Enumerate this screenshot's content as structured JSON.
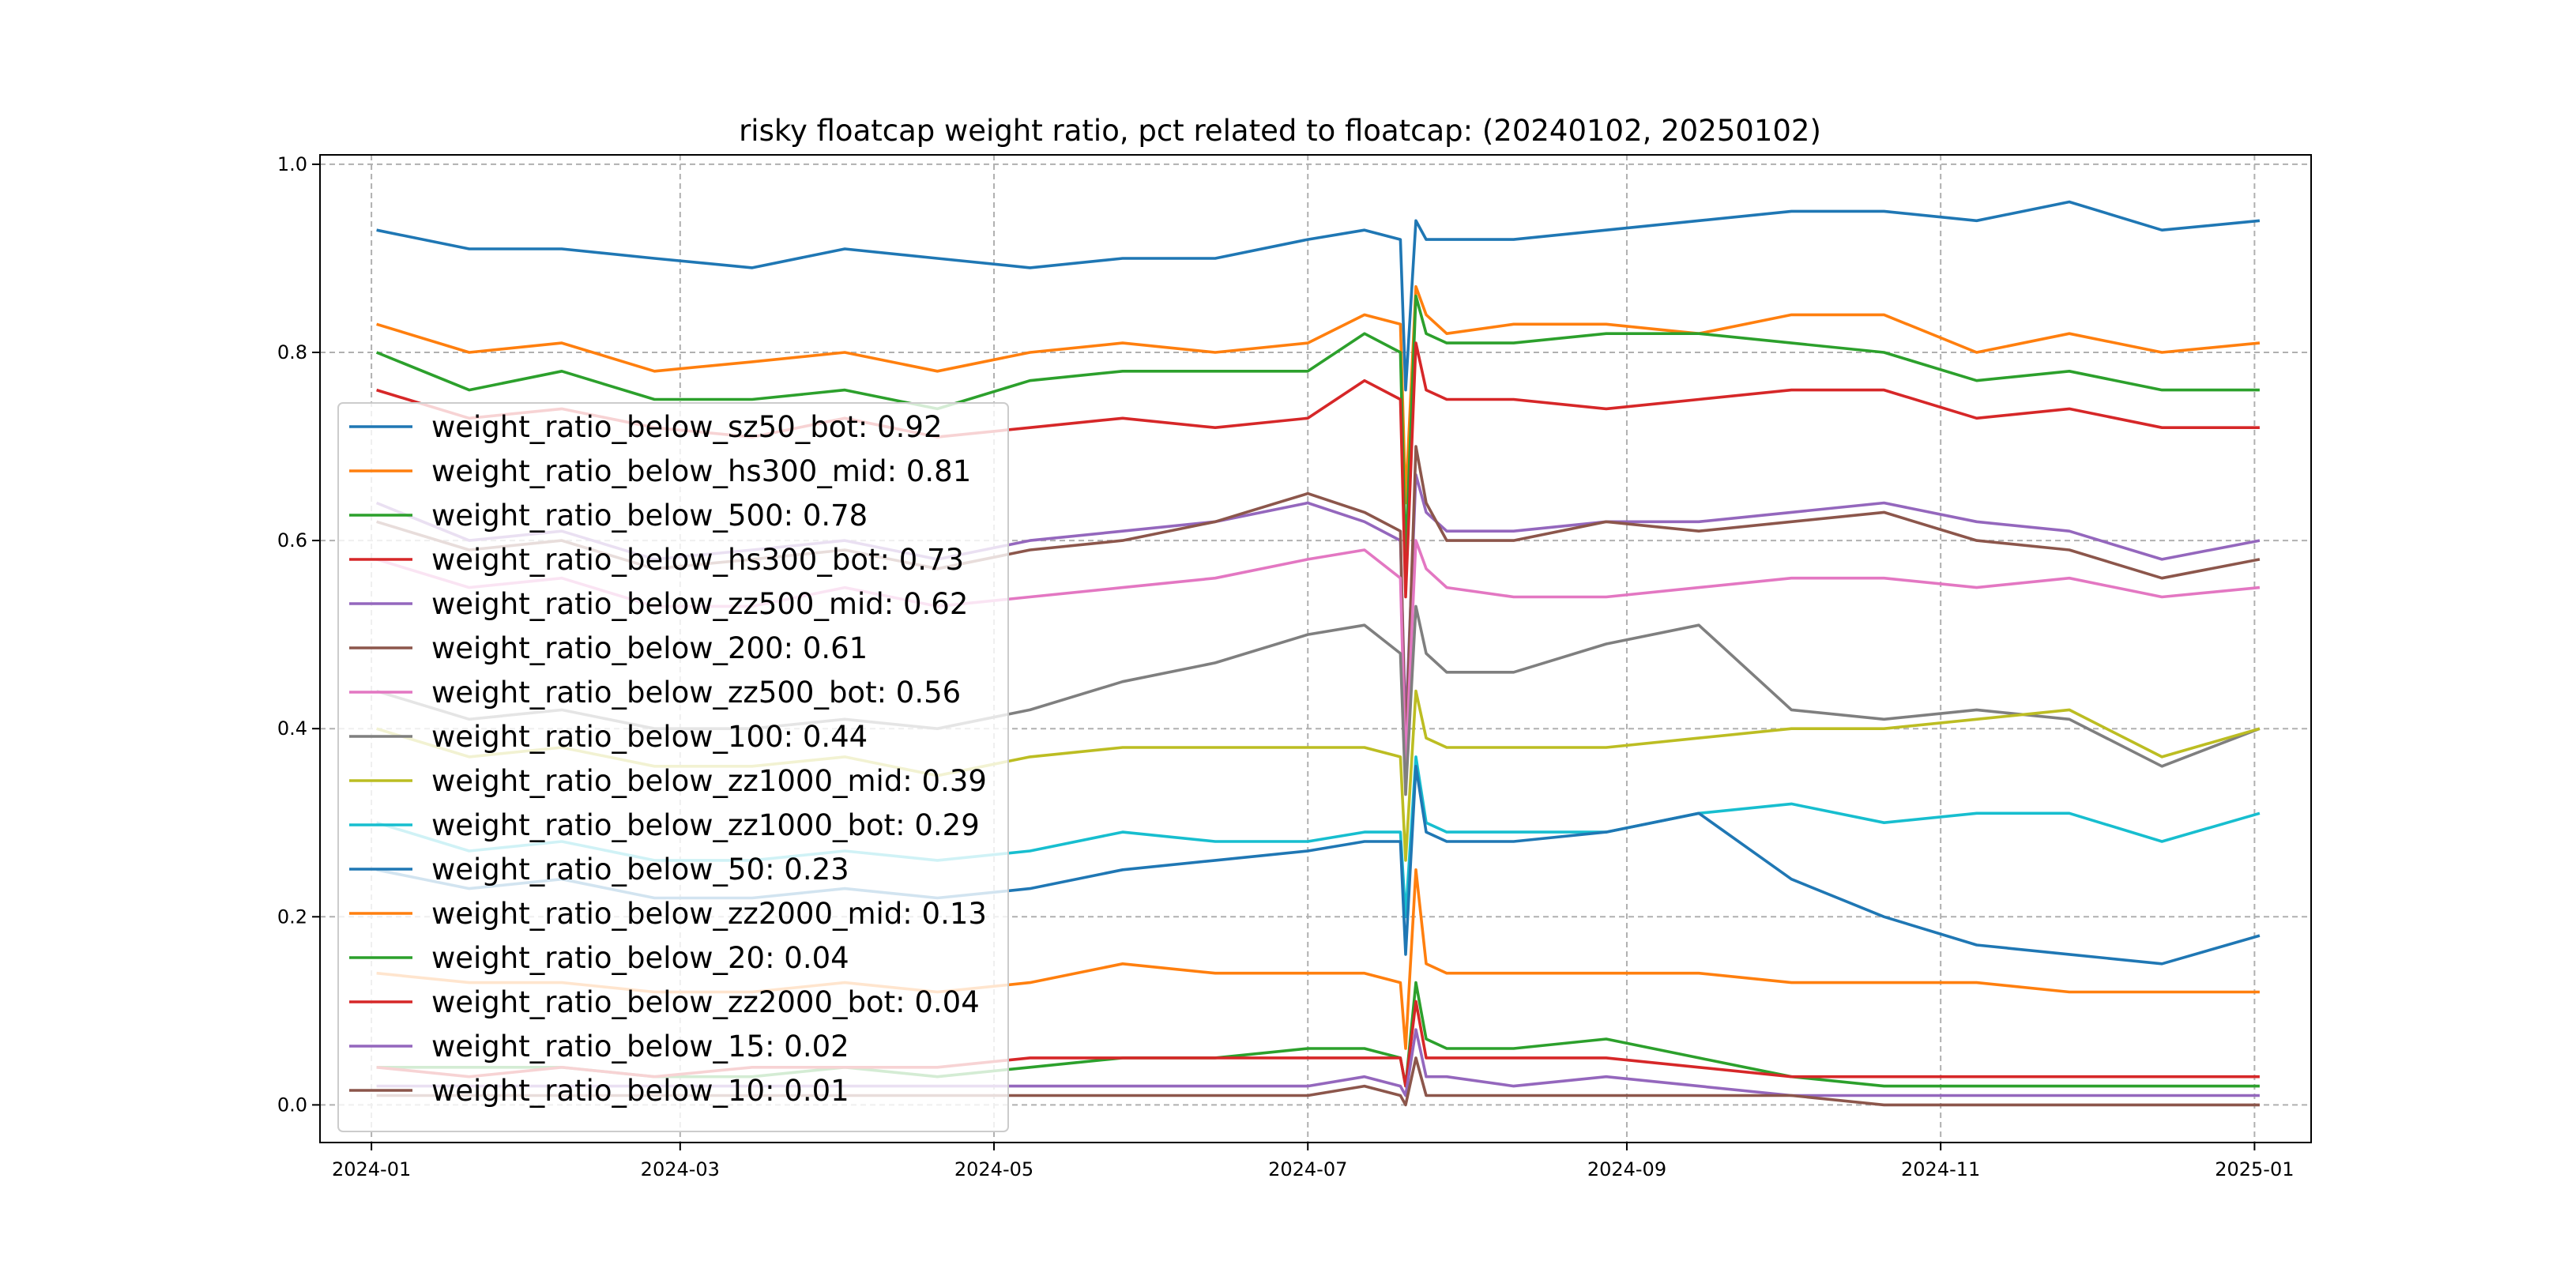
{
  "chart_data": {
    "type": "line",
    "title": "risky floatcap weight ratio, pct related to floatcap: (20240102, 20250102)",
    "xlabel": "",
    "ylabel": "",
    "xlim": [
      "2023-12-22",
      "2025-01-12"
    ],
    "ylim": [
      -0.04,
      1.01
    ],
    "xticks": [
      "2024-01",
      "2024-03",
      "2024-05",
      "2024-07",
      "2024-09",
      "2024-11",
      "2025-01"
    ],
    "xtick_dates": [
      "2024-01-01",
      "2024-03-01",
      "2024-05-01",
      "2024-07-01",
      "2024-09-01",
      "2024-11-01",
      "2025-01-01"
    ],
    "yticks": [
      "0.0",
      "0.2",
      "0.4",
      "0.6",
      "0.8",
      "1.0"
    ],
    "ytick_values": [
      0.0,
      0.2,
      0.4,
      0.6,
      0.8,
      1.0
    ],
    "grid": true,
    "legend_position": "lower-left",
    "x": [
      "2024-01-02",
      "2024-01-20",
      "2024-02-07",
      "2024-02-25",
      "2024-03-15",
      "2024-04-02",
      "2024-04-20",
      "2024-05-08",
      "2024-05-26",
      "2024-06-13",
      "2024-07-01",
      "2024-07-12",
      "2024-07-19",
      "2024-07-20",
      "2024-07-22",
      "2024-07-24",
      "2024-07-28",
      "2024-08-10",
      "2024-08-28",
      "2024-09-15",
      "2024-10-03",
      "2024-10-21",
      "2024-11-08",
      "2024-11-26",
      "2024-12-14",
      "2025-01-02"
    ],
    "series": [
      {
        "name": "weight_ratio_below_sz50_bot: 0.92",
        "color": "#1f77b4",
        "values": [
          0.93,
          0.91,
          0.91,
          0.9,
          0.89,
          0.91,
          0.9,
          0.89,
          0.9,
          0.9,
          0.92,
          0.93,
          0.92,
          0.76,
          0.94,
          0.92,
          0.92,
          0.92,
          0.93,
          0.94,
          0.95,
          0.95,
          0.94,
          0.96,
          0.93,
          0.94
        ]
      },
      {
        "name": "weight_ratio_below_hs300_mid: 0.81",
        "color": "#ff7f0e",
        "values": [
          0.83,
          0.8,
          0.81,
          0.78,
          0.79,
          0.8,
          0.78,
          0.8,
          0.81,
          0.8,
          0.81,
          0.84,
          0.83,
          0.64,
          0.87,
          0.84,
          0.82,
          0.83,
          0.83,
          0.82,
          0.84,
          0.84,
          0.8,
          0.82,
          0.8,
          0.81
        ]
      },
      {
        "name": "weight_ratio_below_500: 0.78",
        "color": "#2ca02c",
        "values": [
          0.8,
          0.76,
          0.78,
          0.75,
          0.75,
          0.76,
          0.74,
          0.77,
          0.78,
          0.78,
          0.78,
          0.82,
          0.8,
          0.58,
          0.86,
          0.82,
          0.81,
          0.81,
          0.82,
          0.82,
          0.81,
          0.8,
          0.77,
          0.78,
          0.76,
          0.76
        ]
      },
      {
        "name": "weight_ratio_below_hs300_bot: 0.73",
        "color": "#d62728",
        "values": [
          0.76,
          0.73,
          0.74,
          0.72,
          0.71,
          0.73,
          0.71,
          0.72,
          0.73,
          0.72,
          0.73,
          0.77,
          0.75,
          0.54,
          0.81,
          0.76,
          0.75,
          0.75,
          0.74,
          0.75,
          0.76,
          0.76,
          0.73,
          0.74,
          0.72,
          0.72
        ]
      },
      {
        "name": "weight_ratio_below_zz500_mid: 0.62",
        "color": "#9467bd",
        "values": [
          0.64,
          0.6,
          0.61,
          0.58,
          0.59,
          0.6,
          0.58,
          0.6,
          0.61,
          0.62,
          0.64,
          0.62,
          0.6,
          0.4,
          0.67,
          0.63,
          0.61,
          0.61,
          0.62,
          0.62,
          0.63,
          0.64,
          0.62,
          0.61,
          0.58,
          0.6
        ]
      },
      {
        "name": "weight_ratio_below_200: 0.61",
        "color": "#8c564b",
        "values": [
          0.62,
          0.59,
          0.6,
          0.57,
          0.58,
          0.59,
          0.57,
          0.59,
          0.6,
          0.62,
          0.65,
          0.63,
          0.61,
          0.37,
          0.7,
          0.64,
          0.6,
          0.6,
          0.62,
          0.61,
          0.62,
          0.63,
          0.6,
          0.59,
          0.56,
          0.58
        ]
      },
      {
        "name": "weight_ratio_below_zz500_bot: 0.56",
        "color": "#e377c2",
        "values": [
          0.58,
          0.55,
          0.56,
          0.53,
          0.53,
          0.55,
          0.53,
          0.54,
          0.55,
          0.56,
          0.58,
          0.59,
          0.56,
          0.36,
          0.6,
          0.57,
          0.55,
          0.54,
          0.54,
          0.55,
          0.56,
          0.56,
          0.55,
          0.56,
          0.54,
          0.55
        ]
      },
      {
        "name": "weight_ratio_below_100: 0.44",
        "color": "#7f7f7f",
        "values": [
          0.44,
          0.41,
          0.42,
          0.4,
          0.4,
          0.41,
          0.4,
          0.42,
          0.45,
          0.47,
          0.5,
          0.51,
          0.48,
          0.33,
          0.53,
          0.48,
          0.46,
          0.46,
          0.49,
          0.51,
          0.42,
          0.41,
          0.42,
          0.41,
          0.36,
          0.4
        ]
      },
      {
        "name": "weight_ratio_below_zz1000_mid: 0.39",
        "color": "#bcbd22",
        "values": [
          0.4,
          0.37,
          0.38,
          0.36,
          0.36,
          0.37,
          0.35,
          0.37,
          0.38,
          0.38,
          0.38,
          0.38,
          0.37,
          0.26,
          0.44,
          0.39,
          0.38,
          0.38,
          0.38,
          0.39,
          0.4,
          0.4,
          0.41,
          0.42,
          0.37,
          0.4
        ]
      },
      {
        "name": "weight_ratio_below_zz1000_bot: 0.29",
        "color": "#17becf",
        "values": [
          0.3,
          0.27,
          0.28,
          0.26,
          0.26,
          0.27,
          0.26,
          0.27,
          0.29,
          0.28,
          0.28,
          0.29,
          0.29,
          0.2,
          0.37,
          0.3,
          0.29,
          0.29,
          0.29,
          0.31,
          0.32,
          0.3,
          0.31,
          0.31,
          0.28,
          0.31
        ]
      },
      {
        "name": "weight_ratio_below_50: 0.23",
        "color": "#1f77b4",
        "values": [
          0.25,
          0.23,
          0.24,
          0.22,
          0.22,
          0.23,
          0.22,
          0.23,
          0.25,
          0.26,
          0.27,
          0.28,
          0.28,
          0.16,
          0.36,
          0.29,
          0.28,
          0.28,
          0.29,
          0.31,
          0.24,
          0.2,
          0.17,
          0.16,
          0.15,
          0.18
        ]
      },
      {
        "name": "weight_ratio_below_zz2000_mid: 0.13",
        "color": "#ff7f0e",
        "values": [
          0.14,
          0.13,
          0.13,
          0.12,
          0.12,
          0.13,
          0.12,
          0.13,
          0.15,
          0.14,
          0.14,
          0.14,
          0.13,
          0.06,
          0.25,
          0.15,
          0.14,
          0.14,
          0.14,
          0.14,
          0.13,
          0.13,
          0.13,
          0.12,
          0.12,
          0.12
        ]
      },
      {
        "name": "weight_ratio_below_20: 0.04",
        "color": "#2ca02c",
        "values": [
          0.04,
          0.04,
          0.04,
          0.03,
          0.03,
          0.04,
          0.03,
          0.04,
          0.05,
          0.05,
          0.06,
          0.06,
          0.05,
          0.02,
          0.13,
          0.07,
          0.06,
          0.06,
          0.07,
          0.05,
          0.03,
          0.02,
          0.02,
          0.02,
          0.02,
          0.02
        ]
      },
      {
        "name": "weight_ratio_below_zz2000_bot: 0.04",
        "color": "#d62728",
        "values": [
          0.04,
          0.03,
          0.04,
          0.03,
          0.04,
          0.04,
          0.04,
          0.05,
          0.05,
          0.05,
          0.05,
          0.05,
          0.05,
          0.02,
          0.11,
          0.05,
          0.05,
          0.05,
          0.05,
          0.04,
          0.03,
          0.03,
          0.03,
          0.03,
          0.03,
          0.03
        ]
      },
      {
        "name": "weight_ratio_below_15: 0.02",
        "color": "#9467bd",
        "values": [
          0.02,
          0.02,
          0.02,
          0.02,
          0.02,
          0.02,
          0.02,
          0.02,
          0.02,
          0.02,
          0.02,
          0.03,
          0.02,
          0.01,
          0.08,
          0.03,
          0.03,
          0.02,
          0.03,
          0.02,
          0.01,
          0.01,
          0.01,
          0.01,
          0.01,
          0.01
        ]
      },
      {
        "name": "weight_ratio_below_10: 0.01",
        "color": "#8c564b",
        "values": [
          0.01,
          0.01,
          0.01,
          0.01,
          0.01,
          0.01,
          0.01,
          0.01,
          0.01,
          0.01,
          0.01,
          0.02,
          0.01,
          0.0,
          0.05,
          0.01,
          0.01,
          0.01,
          0.01,
          0.01,
          0.01,
          0.0,
          0.0,
          0.0,
          0.0,
          0.0
        ]
      }
    ]
  }
}
